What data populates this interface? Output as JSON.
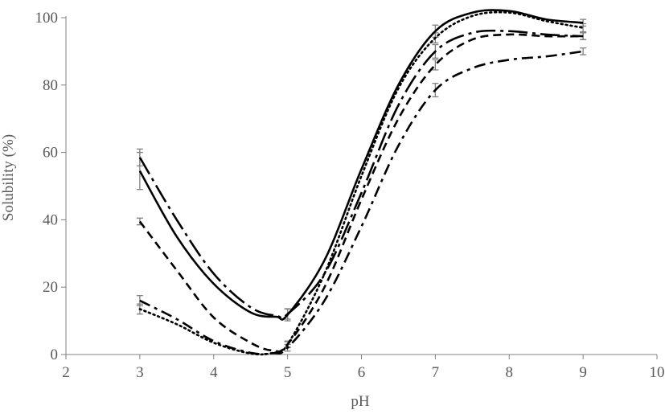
{
  "chart_data": {
    "type": "line",
    "xlabel": "pH",
    "ylabel": "Solubility (%)",
    "xlim": [
      2,
      10
    ],
    "ylim": [
      0,
      100
    ],
    "x_ticks": [
      2,
      3,
      4,
      5,
      6,
      7,
      8,
      9,
      10
    ],
    "y_ticks": [
      0,
      20,
      40,
      60,
      80,
      100
    ],
    "grid": false,
    "legend": "none",
    "series": [
      {
        "style": "solid",
        "points": [
          [
            3,
            54.5
          ],
          [
            3.5,
            35
          ],
          [
            4,
            21
          ],
          [
            4.5,
            12.5
          ],
          [
            4.85,
            11.2
          ],
          [
            5,
            11.8
          ],
          [
            5.5,
            28
          ],
          [
            6,
            55
          ],
          [
            6.5,
            80
          ],
          [
            7,
            96
          ],
          [
            7.5,
            101.5
          ],
          [
            8,
            102
          ],
          [
            8.5,
            99.5
          ],
          [
            9,
            98.5
          ]
        ],
        "errors": [
          [
            3,
            5.5
          ],
          [
            5,
            1.8
          ],
          [
            7,
            1.8
          ],
          [
            9,
            1.0
          ]
        ]
      },
      {
        "style": "dotted",
        "points": [
          [
            3,
            13.5
          ],
          [
            3.5,
            9
          ],
          [
            4,
            3.5
          ],
          [
            4.5,
            0.3
          ],
          [
            4.8,
            0.5
          ],
          [
            5,
            3
          ],
          [
            5.5,
            24
          ],
          [
            6,
            53
          ],
          [
            6.5,
            79
          ],
          [
            7,
            94
          ],
          [
            7.5,
            100.5
          ],
          [
            8,
            101.5
          ],
          [
            8.5,
            99
          ],
          [
            9,
            97
          ]
        ],
        "errors": [
          [
            3,
            1.5
          ],
          [
            5,
            1.0
          ],
          [
            7,
            1.5
          ],
          [
            9,
            1.2
          ]
        ]
      },
      {
        "style": "dashed",
        "points": [
          [
            3,
            39.5
          ],
          [
            3.5,
            25
          ],
          [
            4,
            11
          ],
          [
            4.5,
            3.5
          ],
          [
            4.8,
            1.2
          ],
          [
            5,
            3
          ],
          [
            5.5,
            20
          ],
          [
            6,
            46
          ],
          [
            6.5,
            70
          ],
          [
            7,
            86
          ],
          [
            7.5,
            93.5
          ],
          [
            8,
            95
          ],
          [
            8.5,
            94.5
          ],
          [
            9,
            94.5
          ]
        ],
        "errors": [
          [
            3,
            1.0
          ],
          [
            5,
            0.8
          ],
          [
            7,
            1.5
          ],
          [
            9,
            1.0
          ]
        ]
      },
      {
        "style": "long-dash-dot",
        "points": [
          [
            3,
            58.5
          ],
          [
            3.5,
            40
          ],
          [
            4,
            24
          ],
          [
            4.5,
            14
          ],
          [
            4.85,
            11.5
          ],
          [
            5,
            12
          ],
          [
            5.5,
            24
          ],
          [
            6,
            48
          ],
          [
            6.5,
            74
          ],
          [
            7,
            90
          ],
          [
            7.5,
            95.5
          ],
          [
            8,
            96
          ],
          [
            8.5,
            95
          ],
          [
            9,
            94.5
          ]
        ],
        "errors": [
          [
            3,
            2.5
          ],
          [
            5,
            1.5
          ],
          [
            7,
            2.0
          ],
          [
            9,
            1.0
          ]
        ]
      },
      {
        "style": "dash-dot",
        "points": [
          [
            3,
            16
          ],
          [
            3.5,
            10.5
          ],
          [
            4,
            4
          ],
          [
            4.5,
            0.5
          ],
          [
            4.8,
            0.4
          ],
          [
            5,
            2
          ],
          [
            5.5,
            16
          ],
          [
            6,
            38
          ],
          [
            6.5,
            62
          ],
          [
            7,
            78.5
          ],
          [
            7.5,
            85
          ],
          [
            8,
            87.5
          ],
          [
            8.5,
            88.5
          ],
          [
            9,
            90
          ]
        ],
        "errors": [
          [
            3,
            1.5
          ],
          [
            5,
            1.0
          ],
          [
            7,
            2.0
          ],
          [
            9,
            1.0
          ]
        ]
      }
    ]
  }
}
